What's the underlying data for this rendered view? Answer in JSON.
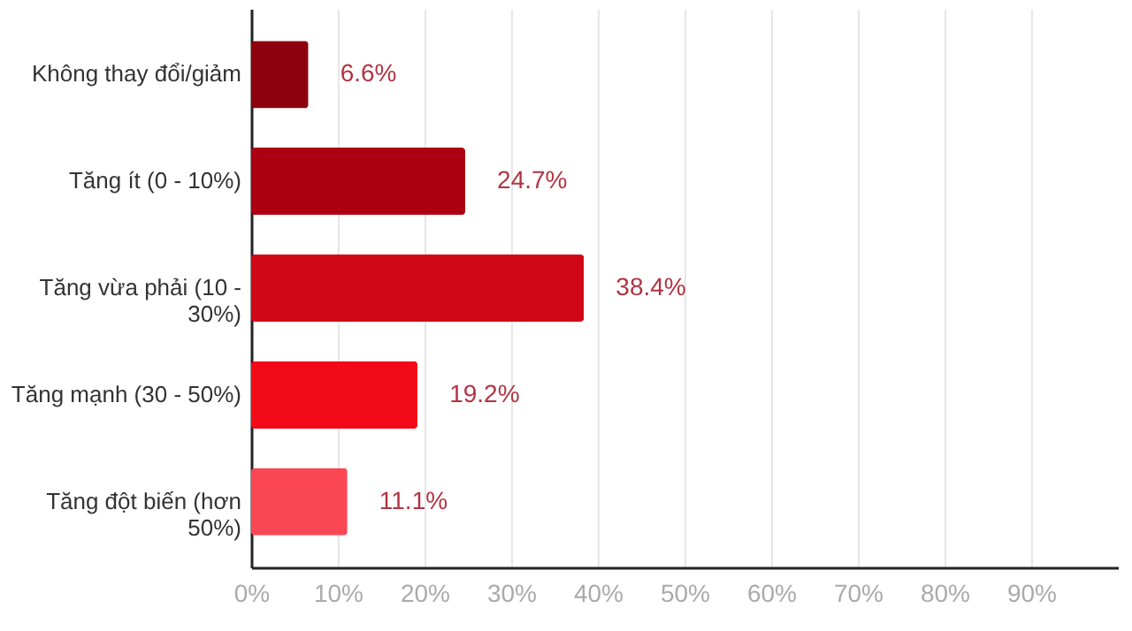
{
  "chart_data": {
    "type": "bar",
    "orientation": "horizontal",
    "categories": [
      "Không thay đổi/giảm",
      "Tăng ít (0 - 10%)",
      "Tăng vừa phải (10 -\n30%)",
      "Tăng mạnh (30 - 50%)",
      "Tăng đột biến (hơn\n50%)"
    ],
    "values": [
      6.6,
      24.7,
      38.4,
      19.2,
      11.1
    ],
    "colors": [
      "#8e000d",
      "#ac0012",
      "#d10716",
      "#f20a19",
      "#fb4754"
    ],
    "value_labels": [
      "6.6%",
      "24.7%",
      "38.4%",
      "19.2%",
      "11.1%"
    ],
    "xlim": [
      0,
      100
    ],
    "xticks": [
      {
        "value": 0,
        "label": "0%"
      },
      {
        "value": 10,
        "label": "10%"
      },
      {
        "value": 20,
        "label": "20%"
      },
      {
        "value": 30,
        "label": "30%"
      },
      {
        "value": 40,
        "label": "40%"
      },
      {
        "value": 50,
        "label": "50%"
      },
      {
        "value": 60,
        "label": "60%"
      },
      {
        "value": 70,
        "label": "70%"
      },
      {
        "value": 80,
        "label": "80%"
      },
      {
        "value": 90,
        "label": "90%"
      }
    ],
    "grid": "x"
  }
}
